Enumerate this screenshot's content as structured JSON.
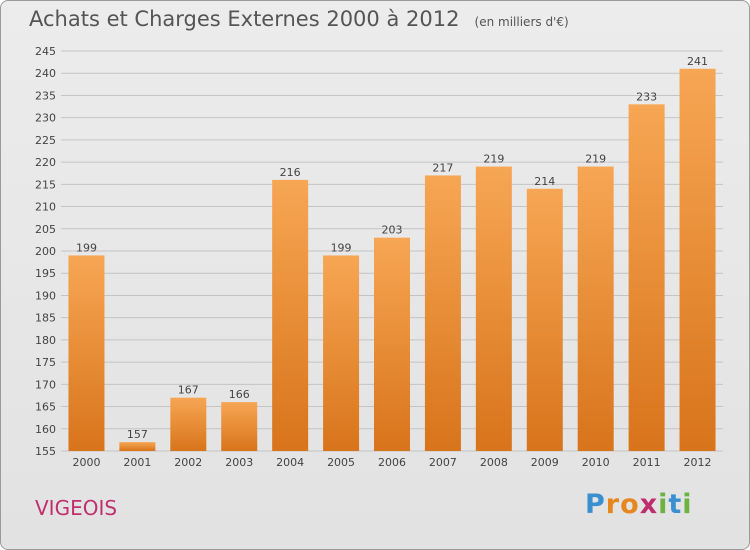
{
  "header": {
    "title": "Achats et Charges Externes 2000 à 2012",
    "unit": "(en milliers d'€)"
  },
  "footer": {
    "commune": "VIGEOIS",
    "logo_letters": [
      "P",
      "r",
      "o",
      "x",
      "i",
      "t",
      "i"
    ],
    "logo_colors": [
      "#3a8fd0",
      "#e6861f",
      "#e6861f",
      "#c02d6e",
      "#6cb33f",
      "#3a8fd0",
      "#6cb33f"
    ]
  },
  "colors": {
    "bar_top": "#f7a654",
    "bar_bottom": "#d8741b",
    "grid": "#c4c4c4",
    "axis_text": "#444444"
  },
  "chart_data": {
    "type": "bar",
    "title": "Achats et Charges Externes 2000 à 2012",
    "xlabel": "",
    "ylabel": "",
    "categories": [
      "2000",
      "2001",
      "2002",
      "2003",
      "2004",
      "2005",
      "2006",
      "2007",
      "2008",
      "2009",
      "2010",
      "2011",
      "2012"
    ],
    "values": [
      199,
      157,
      167,
      166,
      216,
      199,
      203,
      217,
      219,
      214,
      219,
      233,
      241
    ],
    "ylim": [
      155,
      245
    ],
    "yticks": [
      155,
      160,
      165,
      170,
      175,
      180,
      185,
      190,
      195,
      200,
      205,
      210,
      215,
      220,
      225,
      230,
      235,
      240,
      245
    ],
    "grid": true,
    "data_labels": true
  }
}
